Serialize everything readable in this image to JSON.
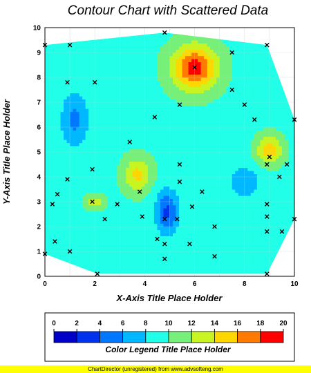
{
  "chart_data": {
    "type": "heatmap",
    "subtype": "contour",
    "title": "Contour Chart with Scattered Data",
    "xlabel": "X-Axis Title Place Holder",
    "ylabel": "Y-Axis Title Place Holder",
    "xlim": [
      0,
      10
    ],
    "ylim": [
      0,
      10
    ],
    "x_ticks": [
      "0",
      "2",
      "4",
      "6",
      "8",
      "10"
    ],
    "y_ticks": [
      "0",
      "1",
      "2",
      "3",
      "4",
      "5",
      "6",
      "7",
      "8",
      "9",
      "10"
    ],
    "grid": true,
    "points": [
      [
        0.0,
        9.3
      ],
      [
        1.0,
        9.3
      ],
      [
        0.9,
        7.8
      ],
      [
        2.0,
        7.8
      ],
      [
        4.8,
        9.8
      ],
      [
        6.0,
        8.4
      ],
      [
        7.5,
        9.0
      ],
      [
        8.9,
        9.3
      ],
      [
        5.4,
        6.9
      ],
      [
        7.5,
        7.5
      ],
      [
        8.0,
        6.9
      ],
      [
        8.4,
        6.3
      ],
      [
        10.0,
        6.3
      ],
      [
        4.4,
        6.4
      ],
      [
        3.4,
        5.4
      ],
      [
        1.9,
        4.3
      ],
      [
        0.9,
        3.9
      ],
      [
        0.5,
        3.3
      ],
      [
        0.3,
        2.9
      ],
      [
        1.9,
        3.0
      ],
      [
        2.9,
        2.9
      ],
      [
        3.8,
        3.4
      ],
      [
        5.4,
        4.5
      ],
      [
        5.4,
        3.8
      ],
      [
        6.3,
        3.4
      ],
      [
        9.0,
        4.8
      ],
      [
        8.9,
        4.5
      ],
      [
        9.7,
        4.5
      ],
      [
        9.4,
        4.0
      ],
      [
        2.4,
        2.3
      ],
      [
        3.9,
        2.4
      ],
      [
        4.8,
        2.3
      ],
      [
        5.3,
        2.3
      ],
      [
        5.9,
        2.8
      ],
      [
        8.9,
        2.9
      ],
      [
        8.9,
        2.4
      ],
      [
        6.8,
        2.0
      ],
      [
        10.0,
        2.3
      ],
      [
        4.5,
        1.5
      ],
      [
        4.8,
        1.3
      ],
      [
        5.8,
        1.3
      ],
      [
        0.4,
        1.4
      ],
      [
        0.0,
        0.9
      ],
      [
        1.0,
        1.0
      ],
      [
        4.8,
        0.7
      ],
      [
        6.8,
        0.8
      ],
      [
        8.9,
        1.8
      ],
      [
        9.5,
        1.8
      ],
      [
        2.1,
        0.1
      ],
      [
        8.9,
        0.1
      ]
    ],
    "levels": [
      0,
      2,
      4,
      6,
      8,
      10,
      12,
      14,
      16,
      18,
      20
    ],
    "colors": [
      "#0000c8",
      "#0033ee",
      "#0077ff",
      "#00b8ff",
      "#22ffe8",
      "#77f07a",
      "#c8f522",
      "#ffd700",
      "#ff7a00",
      "#ff0000"
    ],
    "legend_title": "Color Legend Title Place Holder",
    "legend_ticks": [
      "0",
      "2",
      "4",
      "6",
      "8",
      "10",
      "12",
      "14",
      "16",
      "18",
      "20"
    ],
    "legend_position": "bottom",
    "hotspots": [
      {
        "x": 6.0,
        "y": 8.4,
        "value": 19,
        "sx": 0.9,
        "sy": 0.9
      },
      {
        "x": 9.0,
        "y": 5.1,
        "value": 15.5,
        "sx": 0.5,
        "sy": 0.55
      },
      {
        "x": 3.7,
        "y": 4.1,
        "value": 14.5,
        "sx": 0.55,
        "sy": 0.7
      },
      {
        "x": 2.0,
        "y": 3.0,
        "value": 13,
        "sx": 0.4,
        "sy": 0.3
      },
      {
        "x": 4.9,
        "y": 2.6,
        "value": 3.5,
        "sx": 0.45,
        "sy": 0.85
      },
      {
        "x": 1.2,
        "y": 6.3,
        "value": 5.5,
        "sx": 0.55,
        "sy": 1.1
      },
      {
        "x": 8.0,
        "y": 3.8,
        "value": 6,
        "sx": 0.6,
        "sy": 0.6
      }
    ]
  },
  "footer": "ChartDirector (unregistered) from www.advsofteng.com"
}
